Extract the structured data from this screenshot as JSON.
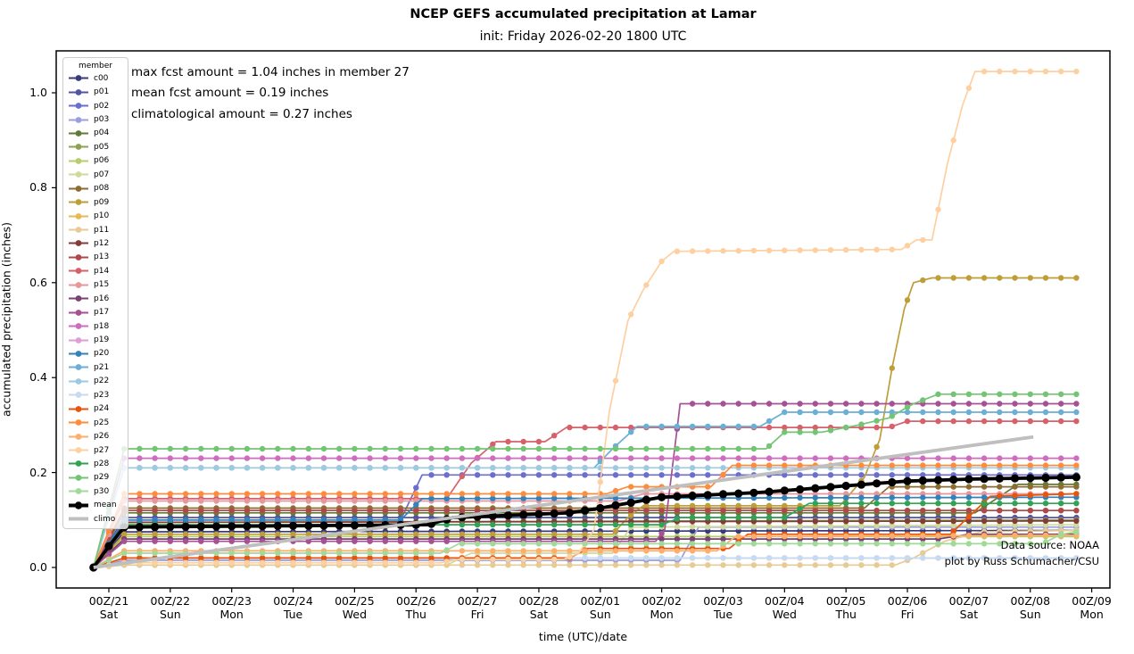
{
  "chart_data": {
    "type": "line",
    "title": "NCEP GEFS accumulated precipitation at Lamar",
    "subtitle": "init: Friday 2026-02-20 1800 UTC",
    "xlabel": "time (UTC)/date",
    "ylabel": "accumulated precipitation (inches)",
    "annotations": [
      "max fcst amount = 1.04 inches in member 27",
      "mean fcst amount = 0.19 inches",
      "climatological amount = 0.27 inches"
    ],
    "credits": [
      "Data source: NOAA",
      "plot by Russ Schumacher/CSU"
    ],
    "legend_title": "member",
    "legend_position": "upper left",
    "grid": false,
    "marker_every_hours": 6,
    "time_axis_days": {
      "first_point": -0.25,
      "last_point": 15.75,
      "axis_min": -0.86,
      "axis_max": 16.3
    },
    "ylim": [
      -0.04,
      1.09
    ],
    "y_ticks": [
      {
        "value": 0.0,
        "label": "0.0"
      },
      {
        "value": 0.2,
        "label": "0.2"
      },
      {
        "value": 0.4,
        "label": "0.4"
      },
      {
        "value": 0.6,
        "label": "0.6"
      },
      {
        "value": 0.8,
        "label": "0.8"
      },
      {
        "value": 1.0,
        "label": "1.0"
      }
    ],
    "x_ticks": [
      {
        "day": 0,
        "date": "00Z/21",
        "weekday": "Sat"
      },
      {
        "day": 1,
        "date": "00Z/22",
        "weekday": "Sun"
      },
      {
        "day": 2,
        "date": "00Z/23",
        "weekday": "Mon"
      },
      {
        "day": 3,
        "date": "00Z/24",
        "weekday": "Tue"
      },
      {
        "day": 4,
        "date": "00Z/25",
        "weekday": "Wed"
      },
      {
        "day": 5,
        "date": "00Z/26",
        "weekday": "Thu"
      },
      {
        "day": 6,
        "date": "00Z/27",
        "weekday": "Fri"
      },
      {
        "day": 7,
        "date": "00Z/28",
        "weekday": "Sat"
      },
      {
        "day": 8,
        "date": "00Z/01",
        "weekday": "Sun"
      },
      {
        "day": 9,
        "date": "00Z/02",
        "weekday": "Mon"
      },
      {
        "day": 10,
        "date": "00Z/03",
        "weekday": "Tue"
      },
      {
        "day": 11,
        "date": "00Z/04",
        "weekday": "Wed"
      },
      {
        "day": 12,
        "date": "00Z/05",
        "weekday": "Thu"
      },
      {
        "day": 13,
        "date": "00Z/06",
        "weekday": "Fri"
      },
      {
        "day": 14,
        "date": "00Z/07",
        "weekday": "Sat"
      },
      {
        "day": 15,
        "date": "00Z/08",
        "weekday": "Sun"
      },
      {
        "day": 16,
        "date": "00Z/09",
        "weekday": "Mon"
      }
    ],
    "series": [
      {
        "name": "c00",
        "color": "#393b79",
        "role": "member",
        "breakpoints": [
          [
            -0.25,
            0
          ],
          [
            0.25,
            0.075
          ],
          [
            15.75,
            0.078
          ]
        ]
      },
      {
        "name": "p01",
        "color": "#5254a3",
        "role": "member",
        "breakpoints": [
          [
            -0.25,
            0
          ],
          [
            0.25,
            0.105
          ],
          [
            15.75,
            0.105
          ]
        ]
      },
      {
        "name": "p02",
        "color": "#6b6ecf",
        "role": "member",
        "breakpoints": [
          [
            -0.25,
            0
          ],
          [
            0.25,
            0.1
          ],
          [
            4.75,
            0.1
          ],
          [
            5.1,
            0.195
          ],
          [
            15.75,
            0.195
          ]
        ]
      },
      {
        "name": "p03",
        "color": "#9c9ede",
        "role": "member",
        "breakpoints": [
          [
            -0.25,
            0
          ],
          [
            0.25,
            0.015
          ],
          [
            9.3,
            0.015
          ],
          [
            9.6,
            0.085
          ],
          [
            15.75,
            0.085
          ]
        ]
      },
      {
        "name": "p04",
        "color": "#637939",
        "role": "member",
        "breakpoints": [
          [
            -0.25,
            0
          ],
          [
            0.25,
            0.115
          ],
          [
            14.1,
            0.115
          ],
          [
            14.8,
            0.175
          ],
          [
            15.75,
            0.175
          ]
        ]
      },
      {
        "name": "p05",
        "color": "#8ca252",
        "role": "member",
        "breakpoints": [
          [
            -0.25,
            0
          ],
          [
            0.25,
            0.095
          ],
          [
            15.75,
            0.1
          ]
        ]
      },
      {
        "name": "p06",
        "color": "#b5cf6b",
        "role": "member",
        "breakpoints": [
          [
            -0.25,
            0
          ],
          [
            0.25,
            0.065
          ],
          [
            15.75,
            0.065
          ]
        ]
      },
      {
        "name": "p07",
        "color": "#cedb9c",
        "role": "member",
        "breakpoints": [
          [
            -0.25,
            0
          ],
          [
            0.25,
            0.005
          ],
          [
            5.5,
            0.005
          ],
          [
            5.9,
            0.03
          ],
          [
            8.2,
            0.03
          ],
          [
            8.5,
            0.085
          ],
          [
            15.75,
            0.09
          ]
        ]
      },
      {
        "name": "p08",
        "color": "#8c6d31",
        "role": "member",
        "breakpoints": [
          [
            -0.25,
            0
          ],
          [
            0.25,
            0.125
          ],
          [
            12.3,
            0.125
          ],
          [
            12.7,
            0.17
          ],
          [
            15.75,
            0.17
          ]
        ]
      },
      {
        "name": "p09",
        "color": "#bd9e39",
        "role": "member",
        "breakpoints": [
          [
            -0.25,
            0
          ],
          [
            0.25,
            0.07
          ],
          [
            8.2,
            0.07
          ],
          [
            8.45,
            0.105
          ],
          [
            8.7,
            0.13
          ],
          [
            11.9,
            0.13
          ],
          [
            12.3,
            0.19
          ],
          [
            12.55,
            0.27
          ],
          [
            12.75,
            0.42
          ],
          [
            12.95,
            0.545
          ],
          [
            13.1,
            0.6
          ],
          [
            13.4,
            0.61
          ],
          [
            15.75,
            0.61
          ]
        ]
      },
      {
        "name": "p10",
        "color": "#e7ba52",
        "role": "member",
        "breakpoints": [
          [
            -0.25,
            0
          ],
          [
            0.25,
            0.12
          ],
          [
            15.75,
            0.12
          ]
        ]
      },
      {
        "name": "p11",
        "color": "#e7cb94",
        "role": "member",
        "breakpoints": [
          [
            -0.25,
            0
          ],
          [
            0.25,
            0.005
          ],
          [
            12.8,
            0.005
          ],
          [
            13.1,
            0.02
          ],
          [
            13.6,
            0.055
          ],
          [
            14.2,
            0.075
          ],
          [
            15.75,
            0.078
          ]
        ]
      },
      {
        "name": "p12",
        "color": "#843c39",
        "role": "member",
        "breakpoints": [
          [
            -0.25,
            0
          ],
          [
            0.25,
            0.095
          ],
          [
            15.75,
            0.098
          ]
        ]
      },
      {
        "name": "p13",
        "color": "#ad494a",
        "role": "member",
        "breakpoints": [
          [
            -0.25,
            0
          ],
          [
            0.25,
            0.12
          ],
          [
            15.75,
            0.12
          ]
        ]
      },
      {
        "name": "p14",
        "color": "#d6616b",
        "role": "member",
        "breakpoints": [
          [
            -0.25,
            0
          ],
          [
            0.25,
            0.145
          ],
          [
            5.5,
            0.145
          ],
          [
            5.9,
            0.22
          ],
          [
            6.3,
            0.265
          ],
          [
            7.1,
            0.265
          ],
          [
            7.45,
            0.295
          ],
          [
            12.7,
            0.295
          ],
          [
            13.0,
            0.308
          ],
          [
            15.75,
            0.308
          ]
        ]
      },
      {
        "name": "p15",
        "color": "#e7969c",
        "role": "member",
        "breakpoints": [
          [
            -0.25,
            0
          ],
          [
            0.25,
            0.14
          ],
          [
            8.3,
            0.14
          ],
          [
            8.7,
            0.155
          ],
          [
            15.75,
            0.155
          ]
        ]
      },
      {
        "name": "p16",
        "color": "#7b4173",
        "role": "member",
        "breakpoints": [
          [
            -0.25,
            0
          ],
          [
            0.25,
            0.06
          ],
          [
            13.5,
            0.06
          ],
          [
            14.0,
            0.07
          ],
          [
            15.75,
            0.07
          ]
        ]
      },
      {
        "name": "p17",
        "color": "#a55194",
        "role": "member",
        "breakpoints": [
          [
            -0.25,
            0
          ],
          [
            0.25,
            0.055
          ],
          [
            8.9,
            0.055
          ],
          [
            9.05,
            0.08
          ],
          [
            9.3,
            0.345
          ],
          [
            15.75,
            0.345
          ]
        ]
      },
      {
        "name": "p18",
        "color": "#ce6dbd",
        "role": "member",
        "breakpoints": [
          [
            -0.25,
            0
          ],
          [
            0.25,
            0.23
          ],
          [
            15.75,
            0.23
          ]
        ]
      },
      {
        "name": "p19",
        "color": "#de9ed6",
        "role": "member",
        "breakpoints": [
          [
            -0.25,
            0
          ],
          [
            0.25,
            0.02
          ],
          [
            15.75,
            0.02
          ]
        ]
      },
      {
        "name": "p20",
        "color": "#3182bd",
        "role": "member",
        "breakpoints": [
          [
            -0.25,
            0
          ],
          [
            0.25,
            0.1
          ],
          [
            4.75,
            0.1
          ],
          [
            5.1,
            0.145
          ],
          [
            15.75,
            0.148
          ]
        ]
      },
      {
        "name": "p21",
        "color": "#6baed6",
        "role": "member",
        "breakpoints": [
          [
            -0.25,
            0
          ],
          [
            0.25,
            0.21
          ],
          [
            7.9,
            0.21
          ],
          [
            8.2,
            0.25
          ],
          [
            8.6,
            0.297
          ],
          [
            10.6,
            0.297
          ],
          [
            11.0,
            0.327
          ],
          [
            15.75,
            0.327
          ]
        ]
      },
      {
        "name": "p22",
        "color": "#9ecae1",
        "role": "member",
        "breakpoints": [
          [
            -0.25,
            0
          ],
          [
            0.25,
            0.21
          ],
          [
            15.75,
            0.21
          ]
        ]
      },
      {
        "name": "p23",
        "color": "#c6dbef",
        "role": "member",
        "breakpoints": [
          [
            -0.25,
            0
          ],
          [
            0.25,
            0.02
          ],
          [
            15.75,
            0.02
          ]
        ]
      },
      {
        "name": "p24",
        "color": "#e6550d",
        "role": "member",
        "breakpoints": [
          [
            -0.25,
            0
          ],
          [
            0.25,
            0.02
          ],
          [
            7.5,
            0.02
          ],
          [
            7.8,
            0.04
          ],
          [
            10.1,
            0.04
          ],
          [
            10.4,
            0.07
          ],
          [
            13.7,
            0.07
          ],
          [
            14.35,
            0.15
          ],
          [
            15.75,
            0.155
          ]
        ]
      },
      {
        "name": "p25",
        "color": "#fd8d3c",
        "role": "member",
        "breakpoints": [
          [
            -0.25,
            0
          ],
          [
            0.25,
            0.155
          ],
          [
            8.1,
            0.155
          ],
          [
            8.45,
            0.17
          ],
          [
            9.8,
            0.17
          ],
          [
            10.15,
            0.215
          ],
          [
            15.75,
            0.215
          ]
        ]
      },
      {
        "name": "p26",
        "color": "#fdae6b",
        "role": "member",
        "breakpoints": [
          [
            -0.25,
            0
          ],
          [
            0.25,
            0.035
          ],
          [
            9.9,
            0.035
          ],
          [
            10.2,
            0.065
          ],
          [
            15.75,
            0.068
          ]
        ]
      },
      {
        "name": "p27",
        "color": "#fdd0a2",
        "role": "member",
        "breakpoints": [
          [
            -0.25,
            0
          ],
          [
            0.25,
            0.01
          ],
          [
            5.4,
            0.01
          ],
          [
            5.7,
            0.017
          ],
          [
            7.4,
            0.017
          ],
          [
            7.65,
            0.03
          ],
          [
            7.9,
            0.08
          ],
          [
            8.15,
            0.33
          ],
          [
            8.45,
            0.52
          ],
          [
            8.7,
            0.585
          ],
          [
            9.0,
            0.645
          ],
          [
            9.2,
            0.666
          ],
          [
            12.9,
            0.67
          ],
          [
            13.15,
            0.69
          ],
          [
            13.4,
            0.69
          ],
          [
            13.65,
            0.85
          ],
          [
            13.9,
            0.975
          ],
          [
            14.1,
            1.045
          ],
          [
            15.75,
            1.045
          ]
        ]
      },
      {
        "name": "p28",
        "color": "#31a354",
        "role": "member",
        "breakpoints": [
          [
            -0.25,
            0
          ],
          [
            0.25,
            0.09
          ],
          [
            9.0,
            0.09
          ],
          [
            9.3,
            0.105
          ],
          [
            11.0,
            0.105
          ],
          [
            11.4,
            0.135
          ],
          [
            15.75,
            0.135
          ]
        ]
      },
      {
        "name": "p29",
        "color": "#74c476",
        "role": "member",
        "breakpoints": [
          [
            -0.25,
            0
          ],
          [
            0.25,
            0.25
          ],
          [
            10.7,
            0.25
          ],
          [
            11.0,
            0.285
          ],
          [
            11.6,
            0.285
          ],
          [
            12.2,
            0.3
          ],
          [
            12.7,
            0.315
          ],
          [
            13.1,
            0.345
          ],
          [
            13.5,
            0.365
          ],
          [
            15.75,
            0.365
          ]
        ]
      },
      {
        "name": "p30",
        "color": "#a1d99b",
        "role": "member",
        "breakpoints": [
          [
            -0.25,
            0
          ],
          [
            0.25,
            0.03
          ],
          [
            5.4,
            0.03
          ],
          [
            5.7,
            0.05
          ],
          [
            15.2,
            0.05
          ],
          [
            15.5,
            0.07
          ],
          [
            15.75,
            0.075
          ]
        ]
      },
      {
        "name": "mean",
        "color": "#000000",
        "role": "mean",
        "breakpoints": [
          [
            -0.25,
            0
          ],
          [
            0,
            0.045
          ],
          [
            0.25,
            0.085
          ],
          [
            5.2,
            0.09
          ],
          [
            5.6,
            0.105
          ],
          [
            7.5,
            0.115
          ],
          [
            8.0,
            0.125
          ],
          [
            9.0,
            0.148
          ],
          [
            10.6,
            0.158
          ],
          [
            12.0,
            0.172
          ],
          [
            13.0,
            0.182
          ],
          [
            14.0,
            0.186
          ],
          [
            15.75,
            0.19
          ]
        ]
      },
      {
        "name": "climo",
        "color": "#bfbfbf",
        "role": "climo",
        "breakpoints": [
          [
            -0.25,
            0
          ],
          [
            15.05,
            0.275
          ]
        ]
      }
    ]
  }
}
